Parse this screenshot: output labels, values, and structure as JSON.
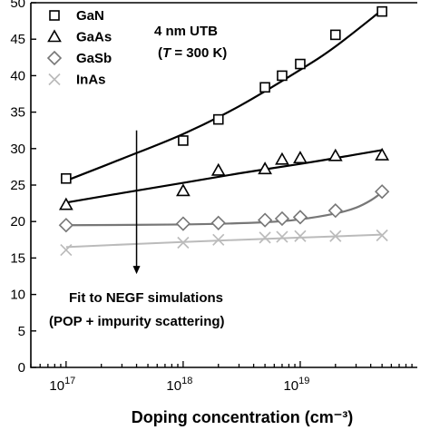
{
  "chart_data": {
    "type": "scatter",
    "title": "",
    "xlabel": "Doping concentration (cm⁻³)",
    "ylabel": "",
    "x_scale": "log",
    "xlim": [
      5e+16,
      1e+20
    ],
    "ylim": [
      0,
      50
    ],
    "x_ticks": [
      {
        "value": 1e+17,
        "base": "10",
        "exp": "17"
      },
      {
        "value": 1e+18,
        "base": "10",
        "exp": "18"
      },
      {
        "value": 1e+19,
        "base": "10",
        "exp": "19"
      }
    ],
    "y_ticks": [
      {
        "value": 0,
        "label": "0"
      },
      {
        "value": 5,
        "label": "5"
      },
      {
        "value": 10,
        "label": "10"
      },
      {
        "value": 15,
        "label": "15"
      },
      {
        "value": 20,
        "label": "20"
      },
      {
        "value": 25,
        "label": "25"
      },
      {
        "value": 30,
        "label": "30"
      },
      {
        "value": 35,
        "label": "35"
      },
      {
        "value": 40,
        "label": "40"
      },
      {
        "value": 45,
        "label": "45"
      },
      {
        "value": 50,
        "label": "50"
      }
    ],
    "grid": false,
    "legend_position": "top-left",
    "series": [
      {
        "name": "GaN",
        "marker": "square",
        "color": "#000000",
        "x": [
          1e+17,
          1e+18,
          2e+18,
          5e+18,
          7e+18,
          1e+19,
          2e+19,
          5e+19
        ],
        "y": [
          25.9,
          31.1,
          34.0,
          38.4,
          40.0,
          41.6,
          45.6,
          48.8
        ],
        "fit_x": [
          1e+17,
          3e+17,
          1e+18,
          3e+18,
          1e+19,
          2e+19,
          5e+19
        ],
        "fit_y": [
          25.6,
          28.6,
          32.0,
          35.8,
          40.8,
          44.0,
          49.0
        ]
      },
      {
        "name": "GaAs",
        "marker": "triangle",
        "color": "#000000",
        "x": [
          1e+17,
          1e+18,
          2e+18,
          5e+18,
          7e+18,
          1e+19,
          2e+19,
          5e+19
        ],
        "y": [
          22.3,
          24.2,
          27.0,
          27.2,
          28.5,
          28.7,
          29.0,
          29.1
        ],
        "fit_x": [
          1e+17,
          3e+17,
          1e+18,
          3e+18,
          1e+19,
          2e+19,
          5e+19
        ],
        "fit_y": [
          22.6,
          23.9,
          25.3,
          26.6,
          27.9,
          28.7,
          29.8
        ]
      },
      {
        "name": "GaSb",
        "marker": "diamond",
        "color": "#777777",
        "x": [
          1e+17,
          1e+18,
          2e+18,
          5e+18,
          7e+18,
          1e+19,
          2e+19,
          5e+19
        ],
        "y": [
          19.5,
          19.7,
          19.8,
          20.2,
          20.4,
          20.6,
          21.5,
          24.1
        ],
        "fit_x": [
          1e+17,
          1e+18,
          5e+18,
          1e+19,
          2e+19,
          3e+19,
          4e+19,
          5e+19
        ],
        "fit_y": [
          19.5,
          19.6,
          19.9,
          20.3,
          21.1,
          21.9,
          22.9,
          24.0
        ]
      },
      {
        "name": "InAs",
        "marker": "x",
        "color": "#bbbbbb",
        "x": [
          1e+17,
          1e+18,
          2e+18,
          5e+18,
          7e+18,
          1e+19,
          2e+19,
          5e+19
        ],
        "y": [
          16.1,
          17.1,
          17.5,
          17.8,
          17.9,
          18.0,
          18.0,
          18.1
        ],
        "fit_x": [
          1e+17,
          1e+18,
          1e+19,
          5e+19
        ],
        "fit_y": [
          16.5,
          17.2,
          17.8,
          18.2
        ]
      }
    ],
    "annotations": {
      "box_line1": "4 nm UTB",
      "box_line2_prefix": "(",
      "box_line2_italic": "T",
      "box_line2_suffix": " = 300 K)",
      "arrow_text_line1": "Fit to NEGF simulations",
      "arrow_text_line2": "(POP + impurity scattering)",
      "arrow_x": 4e+17,
      "arrow_y_start": 32.5,
      "arrow_y_end": 12.8
    }
  }
}
